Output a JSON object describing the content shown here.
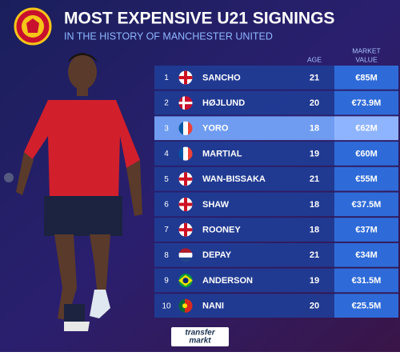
{
  "header": {
    "title": "MOST EXPENSIVE U21 SIGNINGS",
    "subtitle": "IN THE HISTORY OF MANCHESTER UNITED"
  },
  "table": {
    "columns": {
      "age": "AGE",
      "value": [
        "MARKET",
        "VALUE"
      ]
    },
    "rows": [
      {
        "rank": 1,
        "name": "SANCHO",
        "age": 21,
        "value": "€85M"
      },
      {
        "rank": 2,
        "name": "HØJLUND",
        "age": 20,
        "value": "€73.9M"
      },
      {
        "rank": 3,
        "name": "YORO",
        "age": 18,
        "value": "€62M"
      },
      {
        "rank": 4,
        "name": "MARTIAL",
        "age": 19,
        "value": "€60M"
      },
      {
        "rank": 5,
        "name": "WAN-BISSAKA",
        "age": 21,
        "value": "€55M"
      },
      {
        "rank": 6,
        "name": "SHAW",
        "age": 18,
        "value": "€37.5M"
      },
      {
        "rank": 7,
        "name": "ROONEY",
        "age": 18,
        "value": "€37M"
      },
      {
        "rank": 8,
        "name": "DEPAY",
        "age": 21,
        "value": "€34M"
      },
      {
        "rank": 9,
        "name": "ANDERSON",
        "age": 19,
        "value": "€31.5M"
      },
      {
        "rank": 10,
        "name": "NANI",
        "age": 20,
        "value": "€25.5M"
      }
    ]
  },
  "footer": {
    "logo": [
      "transfer",
      "markt"
    ]
  }
}
